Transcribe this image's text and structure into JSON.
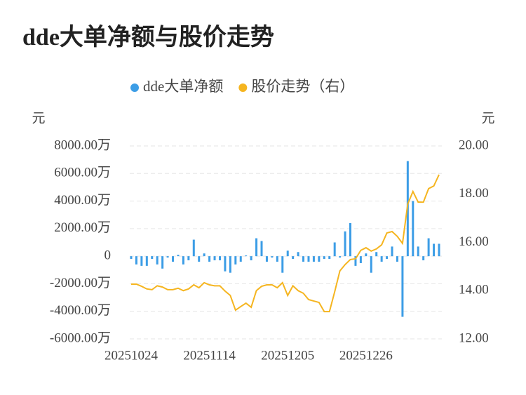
{
  "chart_data": {
    "type": "bar-line",
    "title": "dde大单净额与股价走势",
    "y_label": "元",
    "y2_label": "元",
    "categories": [
      "20251024",
      null,
      null,
      null,
      null,
      null,
      null,
      null,
      null,
      null,
      null,
      null,
      null,
      null,
      null,
      "20251114",
      null,
      null,
      null,
      null,
      null,
      null,
      null,
      null,
      null,
      null,
      null,
      null,
      null,
      null,
      "20251205",
      null,
      null,
      null,
      null,
      null,
      null,
      null,
      null,
      null,
      null,
      null,
      null,
      null,
      null,
      "20251226",
      null,
      null,
      null,
      null,
      null,
      null,
      null,
      null,
      null,
      null,
      null,
      null,
      null,
      null
    ],
    "series": [
      {
        "name": "dde大单净额",
        "type": "bar",
        "color": "#3c9de6",
        "axis": "y",
        "values": [
          -200,
          -600,
          -700,
          -700,
          -200,
          -600,
          -900,
          -100,
          -400,
          100,
          -600,
          -300,
          1200,
          -400,
          200,
          -400,
          -300,
          -300,
          -1100,
          -1200,
          -600,
          -400,
          50,
          -300,
          1300,
          1100,
          -400,
          -100,
          -400,
          -1200,
          400,
          -200,
          300,
          -400,
          -400,
          -400,
          -400,
          -200,
          -200,
          1000,
          -100,
          1800,
          2400,
          -700,
          -500,
          200,
          -1200,
          300,
          -400,
          -200,
          700,
          -400,
          -4400,
          6900,
          4000,
          700,
          -300,
          1300,
          900,
          900
        ]
      },
      {
        "name": "股价走势（右）",
        "type": "line",
        "color": "#f5b520",
        "axis": "y2",
        "values": [
          14.27,
          14.27,
          14.18,
          14.07,
          14.04,
          14.2,
          14.15,
          14.04,
          14.04,
          14.1,
          14.0,
          14.07,
          14.24,
          14.12,
          14.33,
          14.24,
          14.2,
          14.2,
          13.98,
          13.8,
          13.19,
          13.34,
          13.48,
          13.31,
          14.0,
          14.18,
          14.24,
          14.24,
          14.12,
          14.33,
          13.8,
          14.2,
          14.0,
          13.89,
          13.63,
          13.57,
          13.51,
          13.13,
          13.13,
          13.95,
          14.82,
          15.08,
          15.29,
          15.32,
          15.67,
          15.78,
          15.64,
          15.73,
          15.9,
          16.39,
          16.45,
          16.25,
          15.96,
          17.59,
          18.11,
          17.67,
          17.67,
          18.23,
          18.34,
          18.81
        ]
      }
    ],
    "ylim": [
      -6000,
      8000
    ],
    "yticks": [
      {
        "value": -6000,
        "label": "-6000.00万"
      },
      {
        "value": -4000,
        "label": "-4000.00万"
      },
      {
        "value": -2000,
        "label": "-2000.00万"
      },
      0,
      {
        "value": 2000,
        "label": "2000.00万"
      },
      {
        "value": 4000,
        "label": "4000.00万"
      },
      {
        "value": 6000,
        "label": "6000.00万"
      },
      {
        "value": 8000,
        "label": "8000.00万"
      }
    ],
    "y2lim": [
      12,
      20
    ],
    "y2ticks": [
      {
        "value": 12,
        "label": "12.00"
      },
      {
        "value": 14,
        "label": "14.00"
      },
      {
        "value": 16,
        "label": "16.00"
      },
      {
        "value": 18,
        "label": "18.00"
      },
      {
        "value": 20,
        "label": "20.00"
      }
    ],
    "grid": true,
    "legend": "top"
  }
}
